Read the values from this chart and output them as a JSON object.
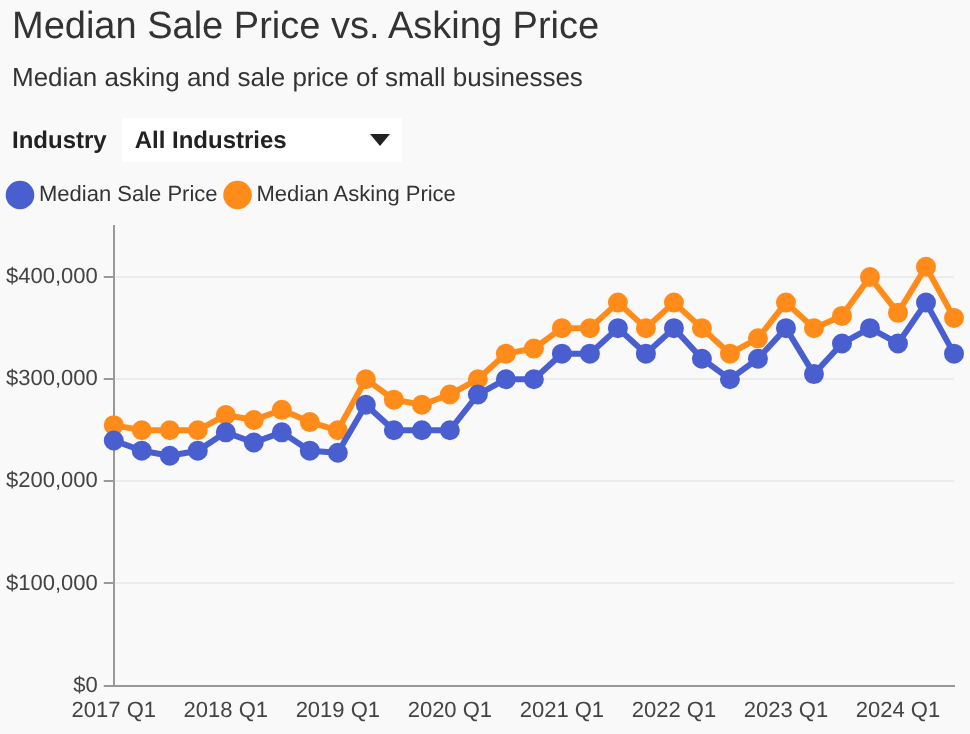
{
  "chart_data": {
    "type": "line",
    "title": "Median Sale Price vs. Asking Price",
    "subtitle": "Median asking and sale price of small businesses",
    "annotations": [
      "Industry",
      "All Industries"
    ],
    "categories": [
      "2017 Q1",
      null,
      null,
      null,
      "2018 Q1",
      null,
      null,
      null,
      "2019 Q1",
      null,
      null,
      null,
      "2020 Q1",
      null,
      null,
      null,
      "2021 Q1",
      null,
      null,
      null,
      "2022 Q1",
      null,
      null,
      null,
      "2023 Q1",
      null,
      null,
      null,
      "2024 Q1",
      null,
      null
    ],
    "series": [
      {
        "name": "Median Sale Price",
        "color": "#4a5fcf",
        "values": [
          240000,
          230000,
          225000,
          230000,
          248000,
          238000,
          248000,
          230000,
          228000,
          275000,
          250000,
          250000,
          250000,
          285000,
          300000,
          300000,
          325000,
          325000,
          350000,
          325000,
          350000,
          320000,
          300000,
          320000,
          350000,
          305000,
          335000,
          350000,
          335000,
          375000,
          325000
        ]
      },
      {
        "name": "Median Asking Price",
        "color": "#ff8c1a",
        "values": [
          255000,
          250000,
          250000,
          250000,
          265000,
          260000,
          270000,
          258000,
          250000,
          300000,
          280000,
          275000,
          285000,
          300000,
          325000,
          330000,
          350000,
          350000,
          375000,
          350000,
          375000,
          350000,
          325000,
          340000,
          375000,
          350000,
          362000,
          400000,
          365000,
          410000,
          360000
        ]
      }
    ],
    "ylim": [
      0,
      450000
    ],
    "yticks": [
      {
        "value": 0,
        "label": "$0"
      },
      {
        "value": 100000,
        "label": "$100,000"
      },
      {
        "value": 200000,
        "label": "$200,000"
      },
      {
        "value": 300000,
        "label": "$300,000"
      },
      {
        "value": 400000,
        "label": "$400,000"
      }
    ],
    "grid": "y",
    "legend": "top left",
    "marker": "circle",
    "line_style": "solid"
  }
}
